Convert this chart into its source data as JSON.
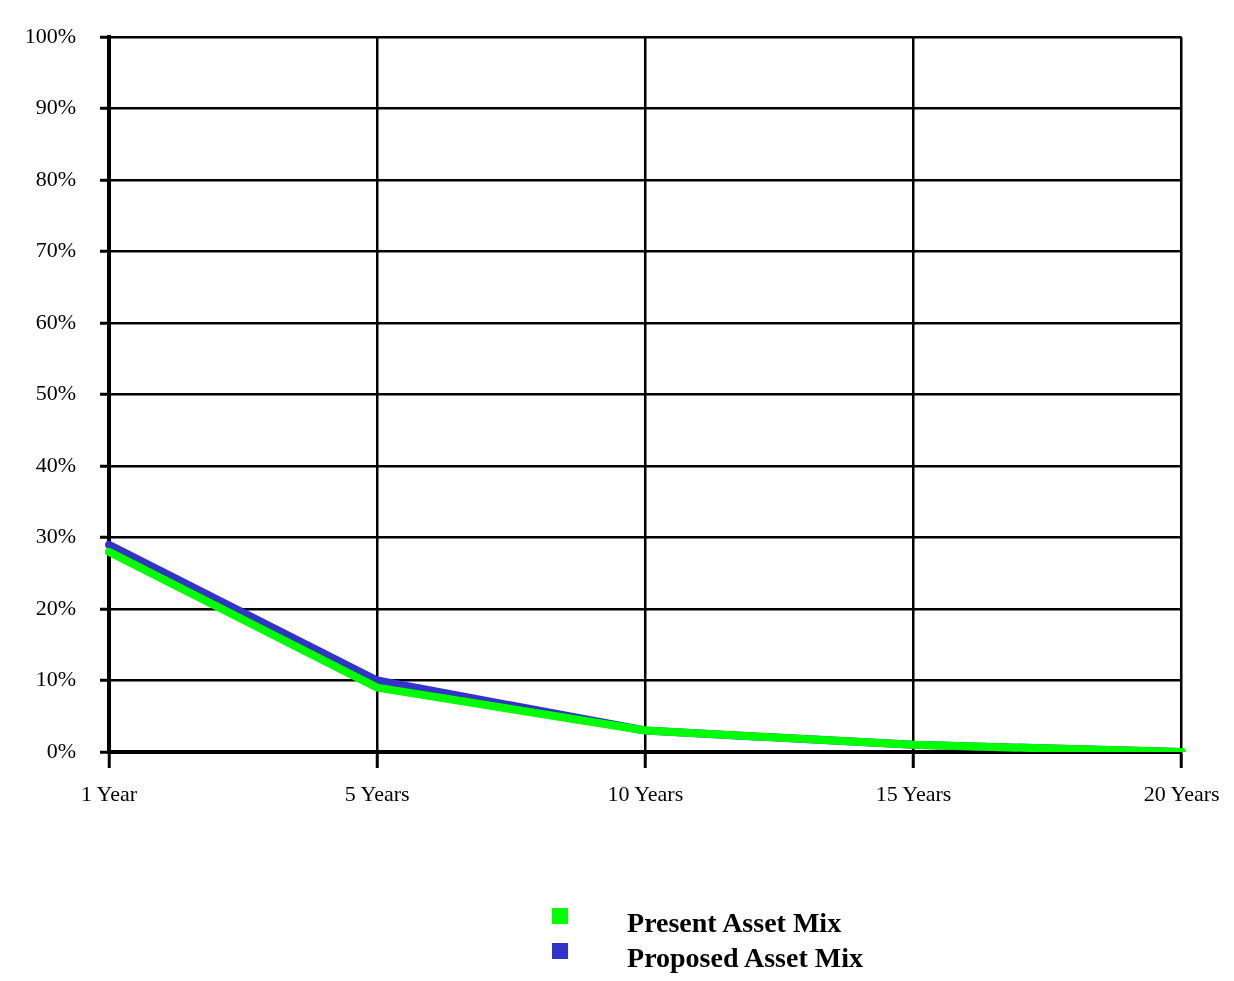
{
  "chart_data": {
    "type": "line",
    "categories": [
      "1 Year",
      "5 Years",
      "10 Years",
      "15 Years",
      "20 Years"
    ],
    "series": [
      {
        "name": "Present Asset Mix",
        "color": "#00ff00",
        "values": [
          28,
          9,
          3,
          1,
          0
        ]
      },
      {
        "name": "Proposed Asset Mix",
        "color": "#3333cc",
        "values": [
          29,
          10,
          3,
          1,
          0
        ]
      }
    ],
    "ylim": [
      0,
      100
    ],
    "yticks": [
      {
        "value": 0,
        "label": "0%"
      },
      {
        "value": 10,
        "label": "10%"
      },
      {
        "value": 20,
        "label": "20%"
      },
      {
        "value": 30,
        "label": "30%"
      },
      {
        "value": 40,
        "label": "40%"
      },
      {
        "value": 50,
        "label": "50%"
      },
      {
        "value": 60,
        "label": "60%"
      },
      {
        "value": 70,
        "label": "70%"
      },
      {
        "value": 80,
        "label": "80%"
      },
      {
        "value": 90,
        "label": "90%"
      },
      {
        "value": 100,
        "label": "100%"
      }
    ],
    "grid": true,
    "legend": "bottom"
  }
}
